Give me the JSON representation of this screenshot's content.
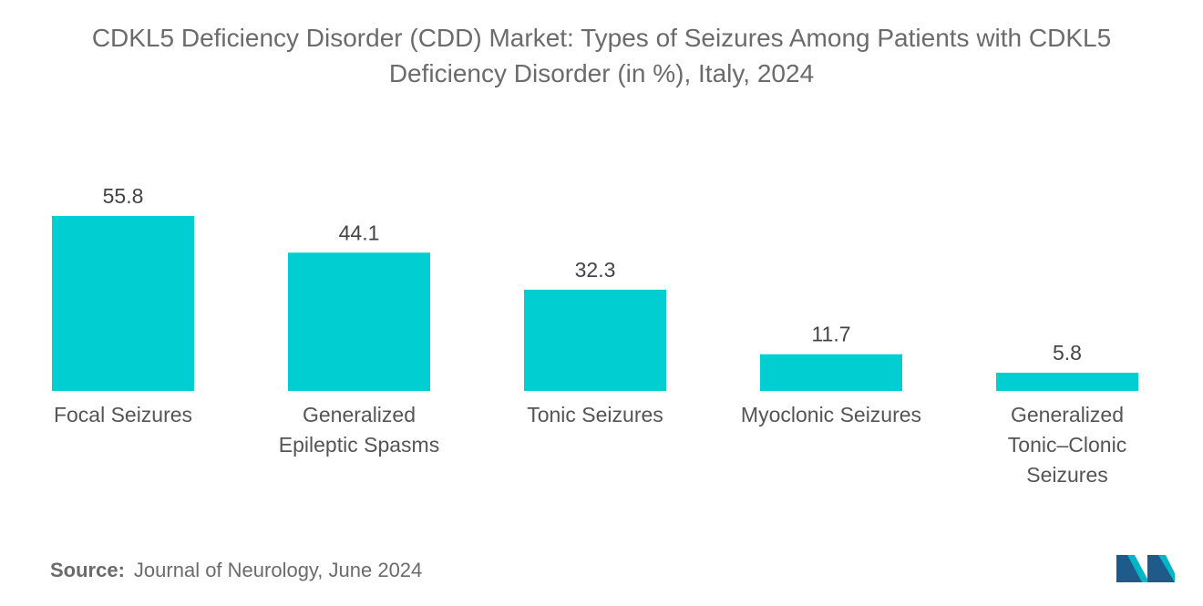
{
  "title_line1": "CDKL5 Deficiency Disorder (CDD) Market: Types of Seizures Among Patients with CDKL5",
  "title_line2": "Deficiency Disorder (in %), Italy, 2024",
  "source_label": "Source:",
  "source_text": "Journal of Neurology, June 2024",
  "colors": {
    "bar": "#00CED1",
    "text": "#555555",
    "logo_dark": "#1e5b8a",
    "logo_light": "#00b5c8"
  },
  "logo_icon": "mordor-intelligence-logo-icon",
  "chart_data": {
    "type": "bar",
    "title": "CDKL5 Deficiency Disorder (CDD) Market: Types of Seizures Among Patients with CDKL5 Deficiency Disorder (in %), Italy, 2024",
    "categories": [
      [
        "Focal Seizures"
      ],
      [
        "Generalized",
        "Epileptic Spasms"
      ],
      [
        "Tonic Seizures"
      ],
      [
        "Myoclonic Seizures"
      ],
      [
        "Generalized",
        "Tonic–Clonic",
        "Seizures"
      ]
    ],
    "values": [
      55.8,
      44.1,
      32.3,
      11.7,
      5.8
    ],
    "value_labels": [
      "55.8",
      "44.1",
      "32.3",
      "11.7",
      "5.8"
    ],
    "xlabel": "",
    "ylabel": "",
    "ylim": [
      0,
      55.8
    ],
    "grid": false,
    "legend": "none"
  }
}
